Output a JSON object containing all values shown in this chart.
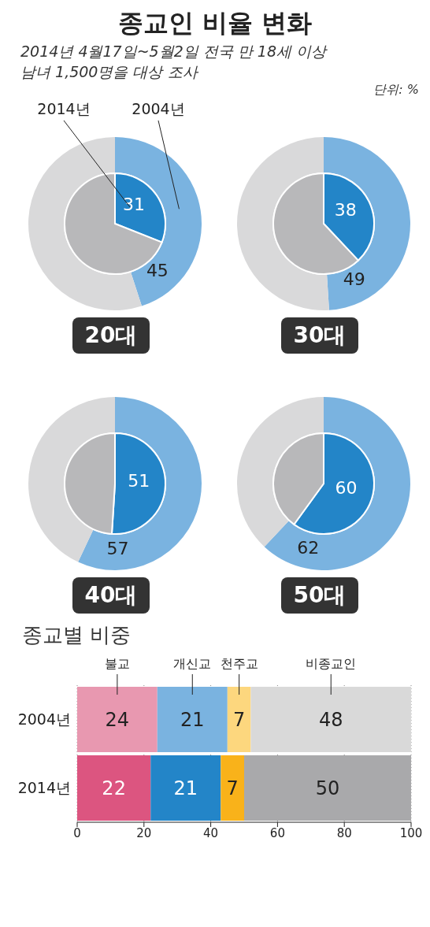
{
  "chart_data": [
    {
      "type": "other",
      "title": "종교인 비율 변화",
      "subtitle": "2014년 4월17일~5월2일 전국 만 18세 이상\n남녀 1,500명을 대상 조사",
      "annotations": [
        "단위: %"
      ]
    },
    {
      "type": "pie",
      "title": "20대",
      "categories": [
        null,
        null
      ],
      "series": [
        {
          "name": "2004년",
          "type": "donut",
          "values": [
            45,
            55
          ],
          "colors": [
            "#7ab3e0",
            "#d9d9da"
          ],
          "value_labels": [
            "45",
            null
          ]
        },
        {
          "name": "2014년",
          "type": "pie",
          "values": [
            31,
            69
          ],
          "colors": [
            "#2385c8",
            "#b8b8ba"
          ],
          "value_labels": [
            "31",
            null
          ]
        }
      ]
    },
    {
      "type": "pie",
      "title": "30대",
      "categories": [
        null,
        null
      ],
      "series": [
        {
          "type": "donut",
          "values": [
            49,
            51
          ],
          "colors": [
            "#7ab3e0",
            "#d9d9da"
          ],
          "value_labels": [
            "49",
            null
          ]
        },
        {
          "type": "pie",
          "values": [
            38,
            62
          ],
          "colors": [
            "#2385c8",
            "#b8b8ba"
          ],
          "value_labels": [
            "38",
            null
          ]
        }
      ]
    },
    {
      "type": "pie",
      "title": "40대",
      "categories": [
        null,
        null
      ],
      "series": [
        {
          "type": "donut",
          "values": [
            57,
            43
          ],
          "colors": [
            "#7ab3e0",
            "#d9d9da"
          ],
          "value_labels": [
            "57",
            null
          ]
        },
        {
          "type": "pie",
          "values": [
            51,
            49
          ],
          "colors": [
            "#2385c8",
            "#b8b8ba"
          ],
          "value_labels": [
            "51",
            null
          ]
        }
      ]
    },
    {
      "type": "pie",
      "title": "50대",
      "categories": [
        null,
        null
      ],
      "series": [
        {
          "type": "donut",
          "values": [
            62,
            38
          ],
          "colors": [
            "#7ab3e0",
            "#d9d9da"
          ],
          "value_labels": [
            "62",
            null
          ]
        },
        {
          "type": "pie",
          "values": [
            60,
            40
          ],
          "colors": [
            "#2385c8",
            "#b8b8ba"
          ],
          "value_labels": [
            "60",
            null
          ]
        }
      ]
    },
    {
      "type": "bar",
      "orientation": "horizontal",
      "stacked": true,
      "title": "종교별 비중",
      "categories": [
        "2004년",
        "2014년"
      ],
      "xlim": [
        0,
        100
      ],
      "xticks": [
        0,
        20,
        40,
        60,
        80,
        100
      ],
      "grid": "x",
      "data_labels": true,
      "legend": "top",
      "series": [
        {
          "name": "불교",
          "colors": [
            "#e898b0",
            "#dc5580"
          ],
          "values": [
            24,
            22
          ]
        },
        {
          "name": "개신교",
          "colors": [
            "#7ab3e0",
            "#2385c8"
          ],
          "values": [
            21,
            21
          ]
        },
        {
          "name": "천주교",
          "colors": [
            "#fdd77e",
            "#f9b21a"
          ],
          "values": [
            7,
            7
          ]
        },
        {
          "name": "비종교인",
          "colors": [
            "#d9d9d9",
            "#a9a9ab"
          ],
          "values": [
            48,
            50
          ]
        }
      ]
    }
  ]
}
